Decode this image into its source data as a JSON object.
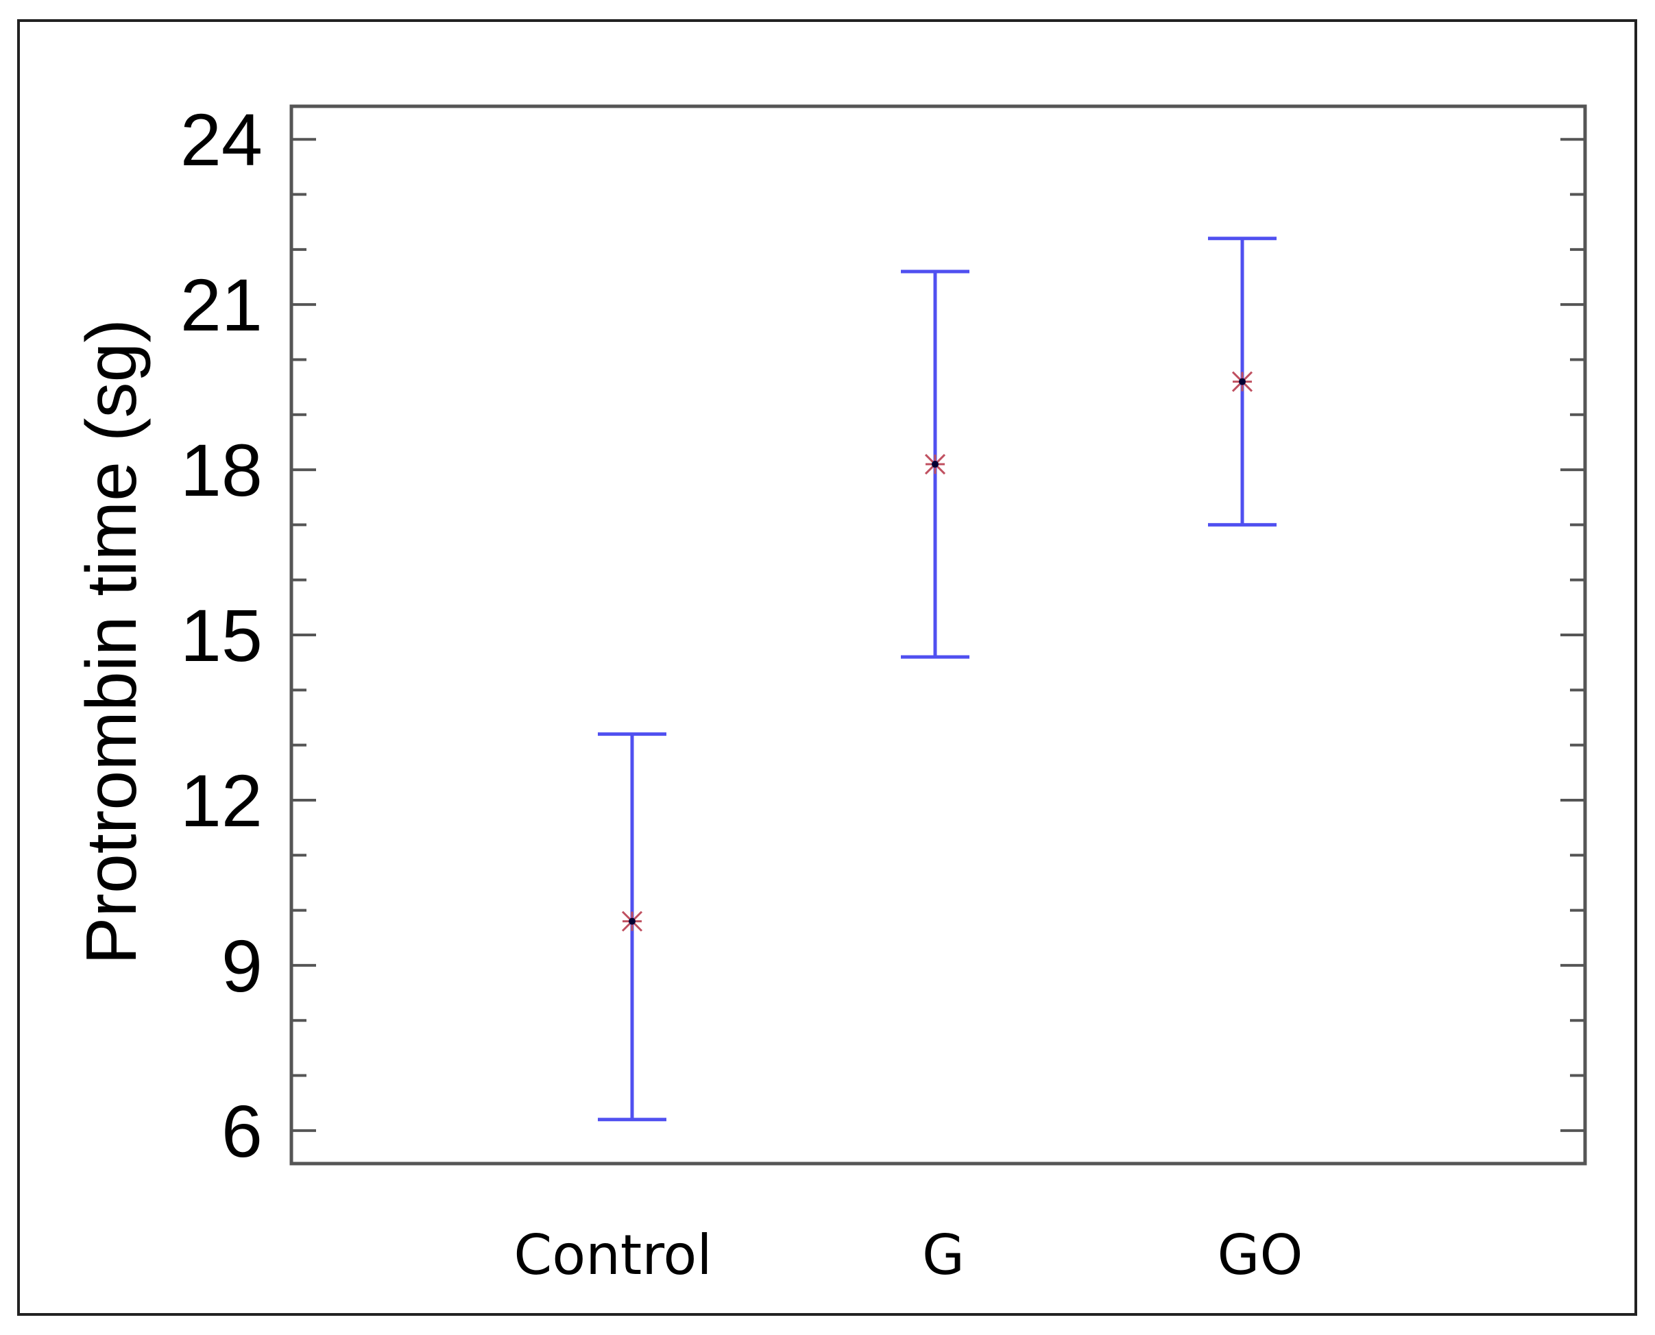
{
  "chart_data": {
    "type": "scatter",
    "subtype": "means-with-error-bars",
    "title": "",
    "xlabel": "",
    "ylabel": "Protrombin time (sg)",
    "categories": [
      "Control",
      "G",
      "GO"
    ],
    "series": [
      {
        "mean": [
          9.8,
          18.1,
          19.6
        ],
        "lower": [
          6.2,
          14.6,
          17.0
        ],
        "upper": [
          13.2,
          21.6,
          22.2
        ]
      }
    ],
    "ylim": [
      5.4,
      24.6
    ],
    "yticks": [
      6,
      9,
      12,
      15,
      18,
      21,
      24
    ],
    "yticks_minor_step": 1,
    "grid": false,
    "legend": "none",
    "colors": {
      "errorbar": "#5050f0",
      "marker": "#c05060",
      "marker_center": "#000033",
      "axes": "#555555"
    }
  }
}
